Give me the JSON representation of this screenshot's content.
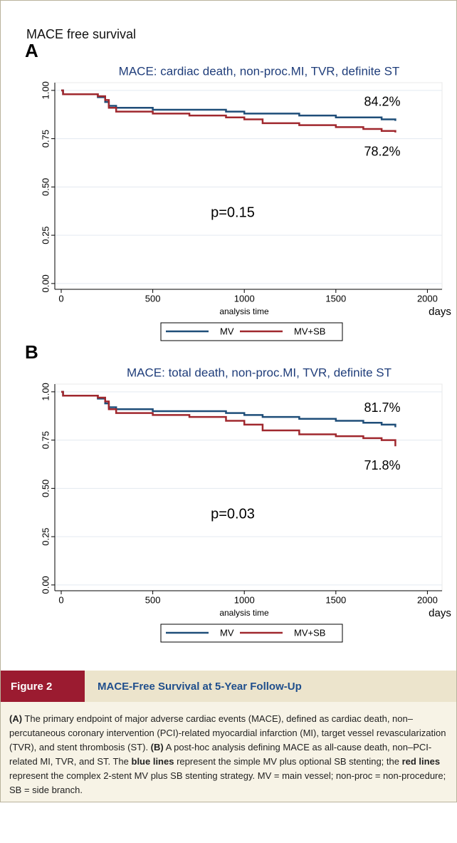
{
  "header_title": "MACE free survival",
  "chart_data": [
    {
      "type": "step-line",
      "panel": "A",
      "title": "MACE: cardiac death, non-proc.MI, TVR, definite ST",
      "xlabel": "analysis time",
      "x_unit": "days",
      "x": [
        0,
        10,
        200,
        240,
        260,
        300,
        500,
        700,
        900,
        1000,
        1100,
        1300,
        1500,
        1650,
        1750,
        1825
      ],
      "series": [
        {
          "name": "MV",
          "color": "#1f4e79",
          "end_label": "84.2%",
          "values": [
            1,
            0.98,
            0.965,
            0.94,
            0.92,
            0.91,
            0.9,
            0.9,
            0.89,
            0.88,
            0.88,
            0.87,
            0.86,
            0.86,
            0.85,
            0.842
          ]
        },
        {
          "name": "MV+SB",
          "color": "#a0282e",
          "end_label": "78.2%",
          "values": [
            1,
            0.98,
            0.97,
            0.95,
            0.91,
            0.89,
            0.88,
            0.87,
            0.86,
            0.85,
            0.83,
            0.82,
            0.81,
            0.8,
            0.79,
            0.782
          ]
        }
      ],
      "annotation": "p=0.15",
      "xlim": [
        -35,
        2080
      ],
      "ylim": [
        -0.03,
        1.04
      ],
      "xticks": [
        0,
        500,
        1000,
        1500,
        2000
      ],
      "yticks": [
        {
          "value": 0,
          "label": "0.00"
        },
        {
          "value": 0.25,
          "label": "0.25"
        },
        {
          "value": 0.5,
          "label": "0.50"
        },
        {
          "value": 0.75,
          "label": "0.75"
        },
        {
          "value": 1,
          "label": "1.00"
        }
      ],
      "grid": true
    },
    {
      "type": "step-line",
      "panel": "B",
      "title": "MACE: total death, non-proc.MI, TVR, definite ST",
      "xlabel": "analysis time",
      "x_unit": "days",
      "x": [
        0,
        10,
        200,
        240,
        260,
        300,
        500,
        700,
        900,
        1000,
        1100,
        1300,
        1500,
        1650,
        1750,
        1825
      ],
      "series": [
        {
          "name": "MV",
          "color": "#1f4e79",
          "end_label": "81.7%",
          "values": [
            1,
            0.98,
            0.965,
            0.94,
            0.92,
            0.91,
            0.9,
            0.9,
            0.89,
            0.88,
            0.87,
            0.86,
            0.85,
            0.84,
            0.83,
            0.817
          ]
        },
        {
          "name": "MV+SB",
          "color": "#a0282e",
          "end_label": "71.8%",
          "values": [
            1,
            0.98,
            0.97,
            0.95,
            0.91,
            0.89,
            0.88,
            0.87,
            0.85,
            0.83,
            0.8,
            0.78,
            0.77,
            0.76,
            0.75,
            0.718
          ]
        }
      ],
      "annotation": "p=0.03",
      "xlim": [
        -35,
        2080
      ],
      "ylim": [
        -0.03,
        1.04
      ],
      "xticks": [
        0,
        500,
        1000,
        1500,
        2000
      ],
      "yticks": [
        {
          "value": 0,
          "label": "0.00"
        },
        {
          "value": 0.25,
          "label": "0.25"
        },
        {
          "value": 0.5,
          "label": "0.50"
        },
        {
          "value": 0.75,
          "label": "0.75"
        },
        {
          "value": 1,
          "label": "1.00"
        }
      ],
      "grid": true
    }
  ],
  "figure": {
    "label": "Figure 2",
    "title": "MACE-Free Survival at 5-Year Follow-Up",
    "caption": [
      {
        "text": "(A)",
        "bold": true
      },
      {
        "text": " The primary endpoint of major adverse cardiac events (MACE), defined as cardiac death, non–percutaneous coronary intervention (PCI)-related myocardial infarction (MI), target vessel revascularization (TVR), and stent thrombosis (ST). "
      },
      {
        "text": "(B)",
        "bold": true
      },
      {
        "text": " A post-hoc analysis defining MACE as all-cause death, non–PCI-related MI, TVR, and ST. The "
      },
      {
        "text": "blue lines",
        "bold": true
      },
      {
        "text": " represent the simple MV plus optional SB stenting; the "
      },
      {
        "text": "red lines",
        "bold": true
      },
      {
        "text": " represent the complex 2-stent MV plus SB stenting strategy. MV = main vessel; non-proc = non-procedure; SB = side branch."
      }
    ]
  }
}
